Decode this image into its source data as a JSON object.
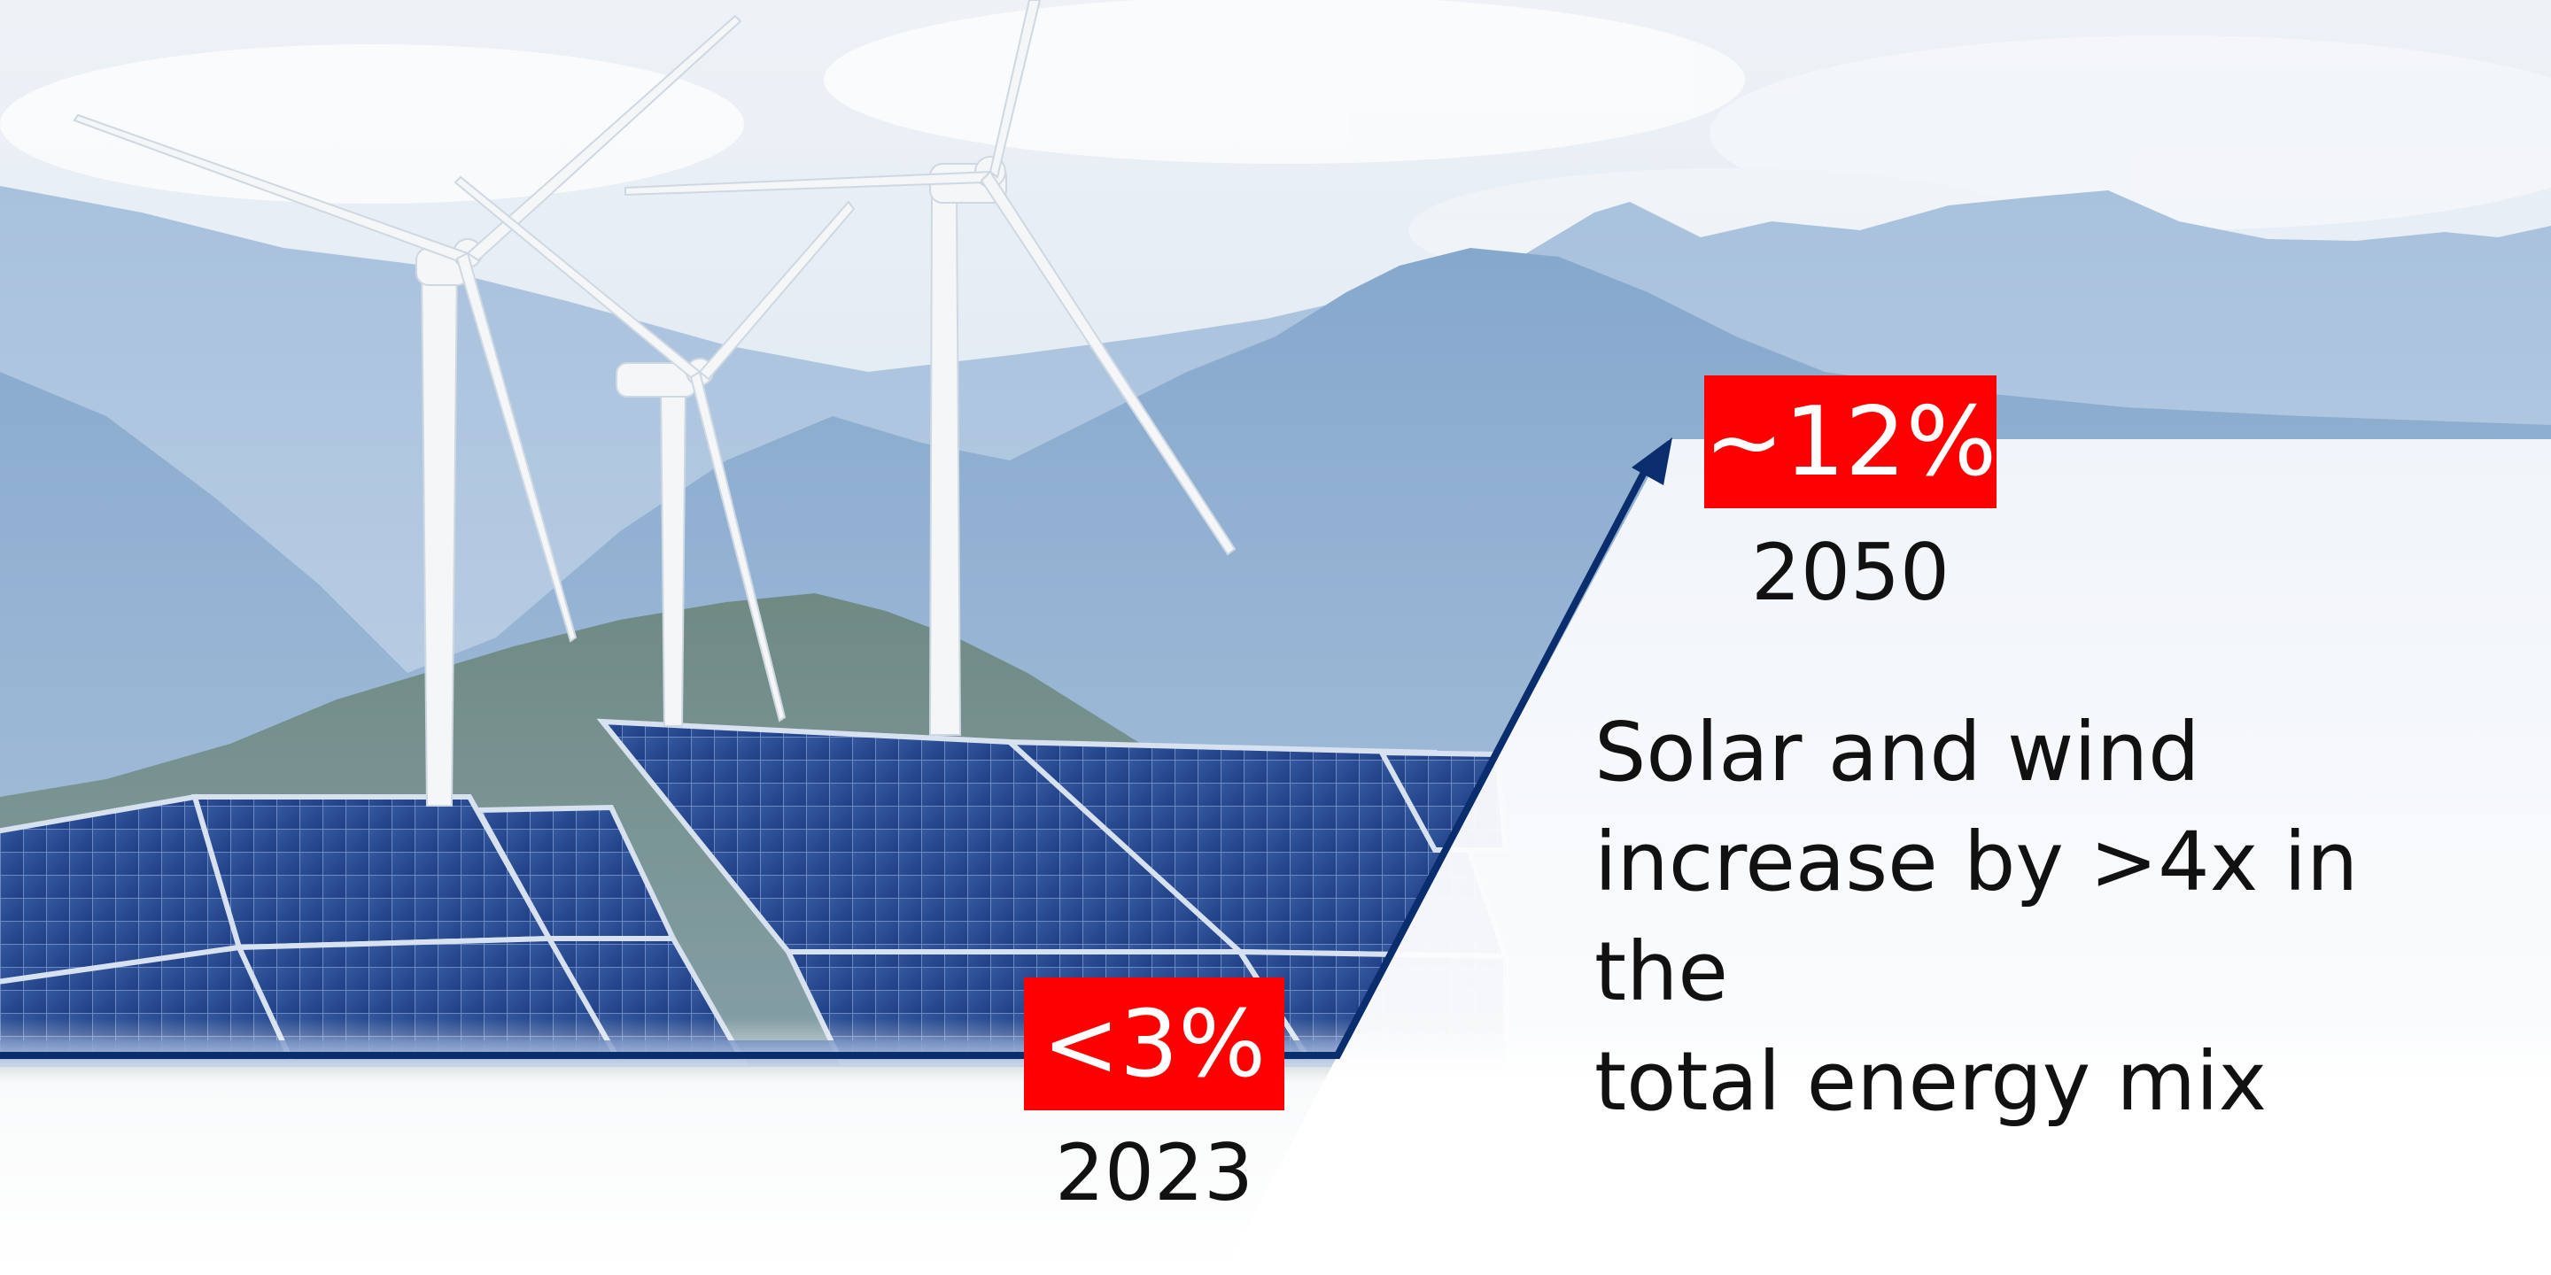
{
  "graphic": {
    "stats": {
      "start": {
        "value": "<3%",
        "year": "2023"
      },
      "end": {
        "value": "~12%",
        "year": "2050"
      }
    },
    "headline_lines": [
      "Solar and wind",
      "increase by >4x in the",
      "total energy mix"
    ]
  },
  "colors": {
    "badge": "#ff0000",
    "arrow": "#0a2d6e",
    "text": "#111111",
    "panel_bg": "#f1f5fa",
    "sky": "#dde7f1",
    "mountain": "#8fb0d2",
    "solar_cell": "#2a4f9c",
    "turbine": "#f4f6f8"
  },
  "icons": [
    "arrow-up-right-icon"
  ]
}
